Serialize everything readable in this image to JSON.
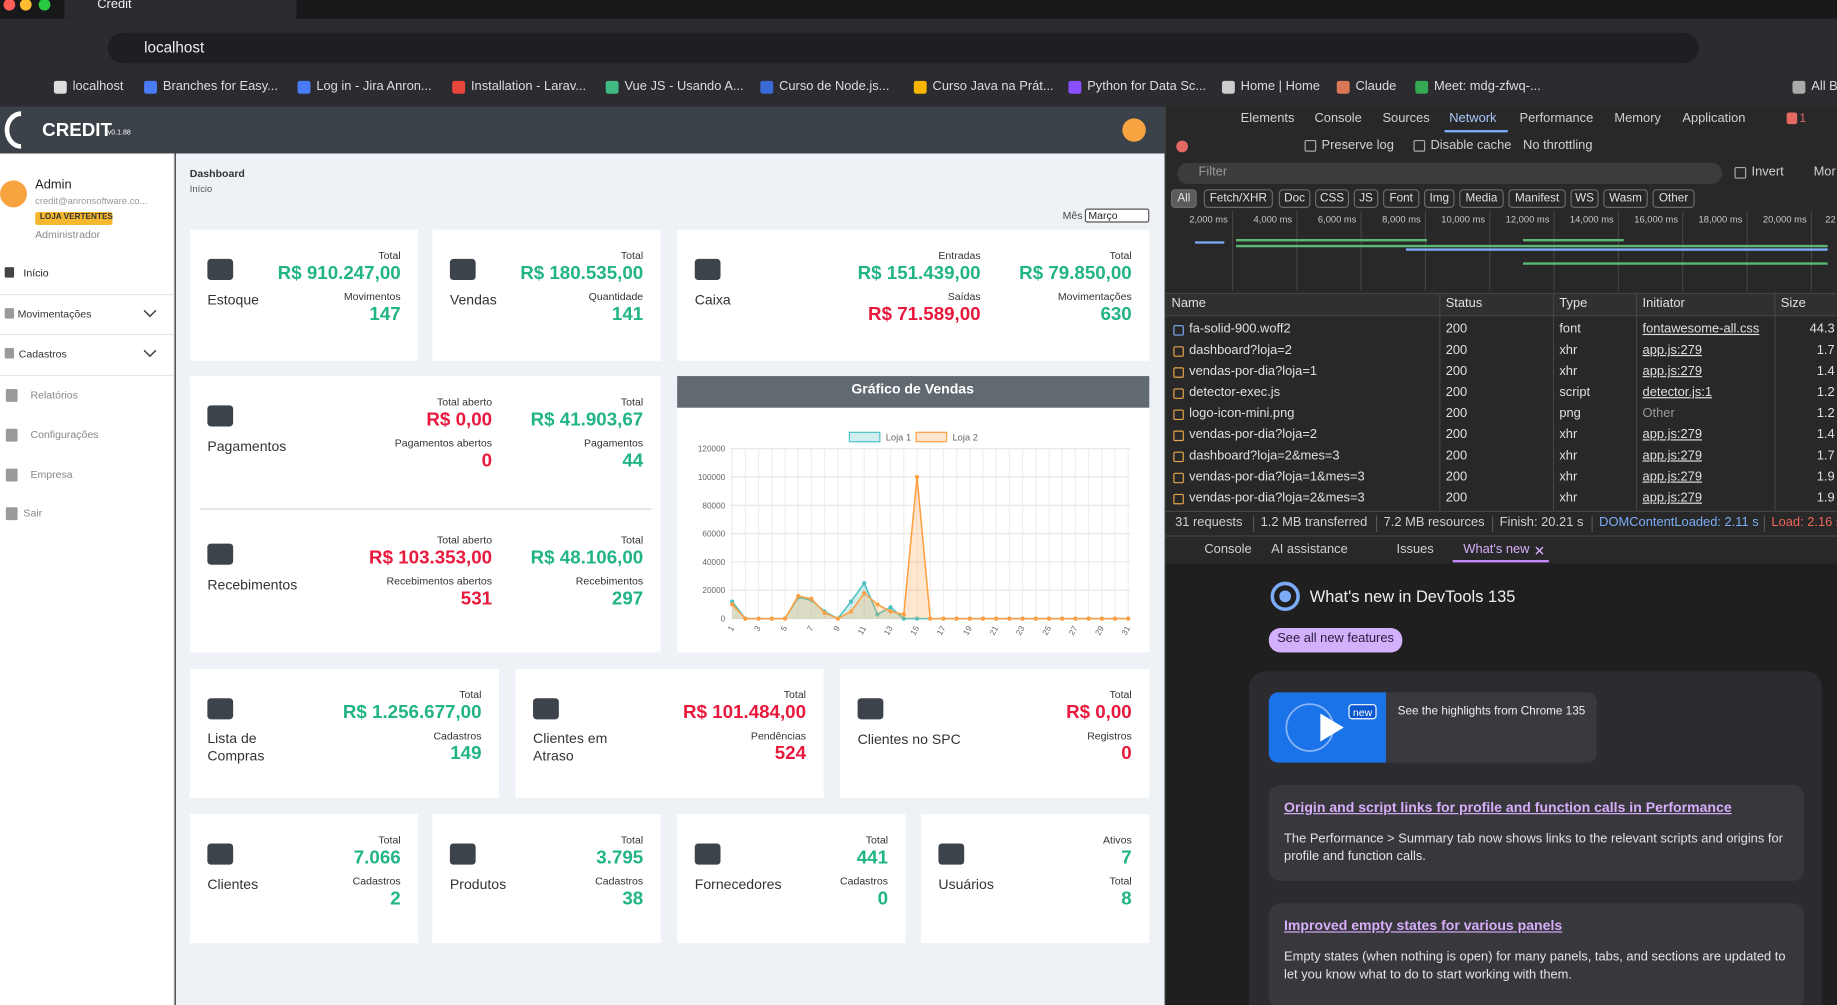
{
  "browser": {
    "tab_title": "Credit",
    "url": "localhost",
    "bookmarks": [
      "localhost",
      "Branches for Easy...",
      "Log in - Jira Anron...",
      "Installation - Larav...",
      "Vue JS - Usando A...",
      "Curso de Node.js...",
      "Curso Java na Prát...",
      "Python for Data Sc...",
      "Home | Home",
      "Claude",
      "Meet: mdg-zfwq-...",
      "All B"
    ]
  },
  "app": {
    "brand": "CREDIT",
    "version": "v0.1.88",
    "user": {
      "name": "Admin",
      "email": "credit@anronsoftware.co...",
      "store": "LOJA VERTENTES",
      "role": "Administrador"
    },
    "menu": [
      "Início",
      "Movimentações",
      "Cadastros",
      "Relatórios",
      "Configurações",
      "Empresa",
      "Sair"
    ],
    "breadcrumb": {
      "title": "Dashboard",
      "current": "Início"
    },
    "month_filter": {
      "label": "Mês",
      "value": "Março"
    },
    "cards": [
      {
        "label": "Estoque",
        "columns": [
          [
            {
              "caption": "Total",
              "value": "R$ 910.247,00",
              "color": "#20b486"
            },
            {
              "caption": "Movimentos",
              "value": "147",
              "color": "#20b486"
            }
          ]
        ]
      },
      {
        "label": "Vendas",
        "columns": [
          [
            {
              "caption": "Total",
              "value": "R$ 180.535,00",
              "color": "#20b486"
            },
            {
              "caption": "Quantidade",
              "value": "141",
              "color": "#20b486"
            }
          ]
        ]
      },
      {
        "label": "Caixa",
        "columns": [
          [
            {
              "caption": "Entradas",
              "value": "R$ 151.439,00",
              "color": "#20b486"
            },
            {
              "caption": "Saídas",
              "value": "R$ 71.589,00",
              "color": "#e8193c"
            }
          ],
          [
            {
              "caption": "Total",
              "value": "R$ 79.850,00",
              "color": "#20b486"
            },
            {
              "caption": "Movimentações",
              "value": "630",
              "color": "#20b486"
            }
          ]
        ]
      },
      {
        "label": "Pagamentos",
        "columns": [
          [
            {
              "caption": "Total aberto",
              "value": "R$ 0,00",
              "color": "#e8193c"
            },
            {
              "caption": "Pagamentos abertos",
              "value": "0",
              "color": "#e8193c"
            }
          ],
          [
            {
              "caption": "Total",
              "value": "R$ 41.903,67",
              "color": "#20b486"
            },
            {
              "caption": "Pagamentos",
              "value": "44",
              "color": "#20b486"
            }
          ]
        ]
      },
      {
        "label": "Recebimentos",
        "columns": [
          [
            {
              "caption": "Total aberto",
              "value": "R$ 103.353,00",
              "color": "#e8193c"
            },
            {
              "caption": "Recebimentos abertos",
              "value": "531",
              "color": "#e8193c"
            }
          ],
          [
            {
              "caption": "Total",
              "value": "R$ 48.106,00",
              "color": "#20b486"
            },
            {
              "caption": "Recebimentos",
              "value": "297",
              "color": "#20b486"
            }
          ]
        ]
      },
      {
        "label": "Lista de Compras",
        "columns": [
          [
            {
              "caption": "Total",
              "value": "R$ 1.256.677,00",
              "color": "#20b486"
            },
            {
              "caption": "Cadastros",
              "value": "149",
              "color": "#20b486"
            }
          ]
        ]
      },
      {
        "label": "Clientes em Atraso",
        "columns": [
          [
            {
              "caption": "Total",
              "value": "R$ 101.484,00",
              "color": "#e8193c"
            },
            {
              "caption": "Pendências",
              "value": "524",
              "color": "#e8193c"
            }
          ]
        ]
      },
      {
        "label": "Clientes no SPC",
        "columns": [
          [
            {
              "caption": "Total",
              "value": "R$ 0,00",
              "color": "#e8193c"
            },
            {
              "caption": "Registros",
              "value": "0",
              "color": "#e8193c"
            }
          ]
        ]
      },
      {
        "label": "Clientes",
        "columns": [
          [
            {
              "caption": "Total",
              "value": "7.066",
              "color": "#20b486"
            },
            {
              "caption": "Cadastros",
              "value": "2",
              "color": "#20b486"
            }
          ]
        ]
      },
      {
        "label": "Produtos",
        "columns": [
          [
            {
              "caption": "Total",
              "value": "3.795",
              "color": "#20b486"
            },
            {
              "caption": "Cadastros",
              "value": "38",
              "color": "#20b486"
            }
          ]
        ]
      },
      {
        "label": "Fornecedores",
        "columns": [
          [
            {
              "caption": "Total",
              "value": "441",
              "color": "#20b486"
            },
            {
              "caption": "Cadastros",
              "value": "0",
              "color": "#20b486"
            }
          ]
        ]
      },
      {
        "label": "Usuários",
        "columns": [
          [
            {
              "caption": "Ativos",
              "value": "7",
              "color": "#20b486"
            },
            {
              "caption": "Total",
              "value": "8",
              "color": "#20b486"
            }
          ]
        ]
      }
    ]
  },
  "chart_data": {
    "type": "line",
    "title": "Gráfico de Vendas",
    "categories": [
      "1",
      null,
      "3",
      null,
      "5",
      null,
      "7",
      null,
      "9",
      null,
      "11",
      null,
      "13",
      null,
      "15",
      null,
      "17",
      null,
      "19",
      null,
      "21",
      null,
      "23",
      null,
      "25",
      null,
      "27",
      null,
      "29",
      null,
      "31"
    ],
    "series": [
      {
        "name": "Loja 1",
        "color": "#4bc0c0",
        "values": [
          12000,
          0,
          0,
          0,
          0,
          15000,
          13000,
          5000,
          0,
          12000,
          25000,
          3000,
          8000,
          0,
          0,
          0,
          0,
          0,
          0,
          0,
          0,
          0,
          0,
          0,
          0,
          0,
          0,
          0,
          0,
          0,
          0
        ]
      },
      {
        "name": "Loja 2",
        "color": "#ff9f40",
        "values": [
          10000,
          0,
          0,
          0,
          0,
          16000,
          14000,
          4000,
          0,
          5000,
          18000,
          10000,
          5000,
          3000,
          100000,
          0,
          0,
          0,
          0,
          0,
          0,
          0,
          0,
          0,
          0,
          0,
          0,
          0,
          0,
          0,
          0
        ]
      }
    ],
    "ylim": [
      0,
      120000
    ],
    "yticks": [
      0,
      20000,
      40000,
      60000,
      80000,
      100000,
      120000
    ],
    "grid": true,
    "fill": true
  },
  "devtools": {
    "panels": [
      "Elements",
      "Console",
      "Sources",
      "Network",
      "Performance",
      "Memory",
      "Application"
    ],
    "error_count": "1",
    "toolbar": {
      "preserve_log": "Preserve log",
      "disable_cache": "Disable cache",
      "throttling": "No throttling"
    },
    "filter": {
      "placeholder": "Filter",
      "invert": "Invert",
      "more": "Mor"
    },
    "type_filters": [
      "All",
      "Fetch/XHR",
      "Doc",
      "CSS",
      "JS",
      "Font",
      "Img",
      "Media",
      "Manifest",
      "WS",
      "Wasm",
      "Other"
    ],
    "timeline": [
      "2,000 ms",
      "4,000 ms",
      "6,000 ms",
      "8,000 ms",
      "10,000 ms",
      "12,000 ms",
      "14,000 ms",
      "16,000 ms",
      "18,000 ms",
      "20,000 ms",
      "22"
    ],
    "table": {
      "columns": [
        "Name",
        "Status",
        "Type",
        "Initiator",
        "Size"
      ],
      "rows": [
        [
          "fa-solid-900.woff2",
          "200",
          "font",
          "fontawesome-all.css",
          "44.3"
        ],
        [
          "dashboard?loja=2",
          "200",
          "xhr",
          "app.js:279",
          "1.7"
        ],
        [
          "vendas-por-dia?loja=1",
          "200",
          "xhr",
          "app.js:279",
          "1.4"
        ],
        [
          "detector-exec.js",
          "200",
          "script",
          "detector.js:1",
          "1.2"
        ],
        [
          "logo-icon-mini.png",
          "200",
          "png",
          "Other",
          "1.2"
        ],
        [
          "vendas-por-dia?loja=2",
          "200",
          "xhr",
          "app.js:279",
          "1.4"
        ],
        [
          "dashboard?loja=2&mes=3",
          "200",
          "xhr",
          "app.js:279",
          "1.7"
        ],
        [
          "vendas-por-dia?loja=1&mes=3",
          "200",
          "xhr",
          "app.js:279",
          "1.9"
        ],
        [
          "vendas-por-dia?loja=2&mes=3",
          "200",
          "xhr",
          "app.js:279",
          "1.9"
        ]
      ]
    },
    "summary": [
      "31 requests",
      "1.2 MB transferred",
      "7.2 MB resources",
      "Finish: 20.21 s",
      "DOMContentLoaded: 2.11 s",
      "Load: 2.16 s"
    ],
    "drawer_tabs": [
      "Console",
      "AI assistance",
      "Issues",
      "What's new"
    ],
    "whats_new": {
      "title": "What's new in DevTools 135",
      "button": "See all new features",
      "video_badge": "new",
      "video_caption": "See the highlights from Chrome 135",
      "articles": [
        {
          "title": "Origin and script links for profile and function calls in Performance",
          "body": "The Performance > Summary tab now shows links to the relevant scripts and origins for profile and function calls."
        },
        {
          "title": "Improved empty states for various panels",
          "body": "Empty states (when nothing is open) for many panels, tabs, and sections are updated to let you know what to do to start working with them."
        }
      ]
    }
  }
}
